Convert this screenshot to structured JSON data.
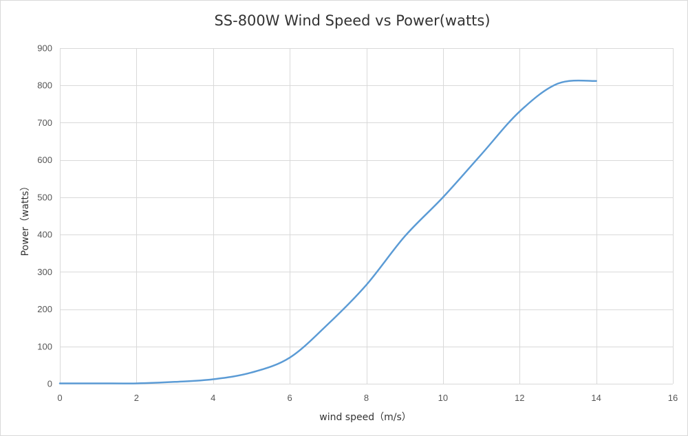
{
  "chart_data": {
    "type": "line",
    "title": "SS-800W Wind Speed vs Power(watts)",
    "xlabel": "wind speed（m/s）",
    "ylabel": "Power（watts）",
    "xlim": [
      0,
      16
    ],
    "ylim": [
      0,
      900
    ],
    "x_ticks": [
      0,
      2,
      4,
      6,
      8,
      10,
      12,
      14,
      16
    ],
    "y_ticks": [
      0,
      100,
      200,
      300,
      400,
      500,
      600,
      700,
      800,
      900
    ],
    "grid": true,
    "legend": "none",
    "series": [
      {
        "color": "#5b9bd5",
        "x": [
          0,
          1,
          2,
          3,
          4,
          5,
          6,
          7,
          8,
          9,
          10,
          11,
          12,
          13,
          14
        ],
        "y": [
          1,
          1,
          1,
          5,
          12,
          30,
          70,
          160,
          265,
          395,
          500,
          615,
          730,
          805,
          812
        ]
      }
    ]
  }
}
